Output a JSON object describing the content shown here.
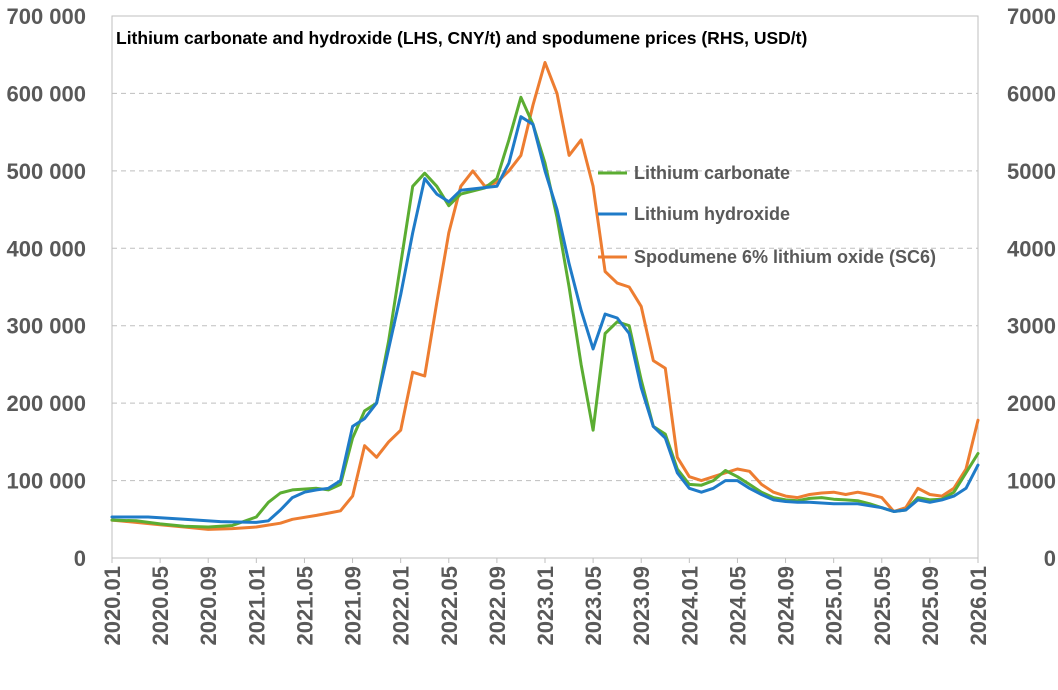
{
  "chart_data": {
    "type": "line",
    "title": "Lithium carbonate and hydroxide (LHS, CNY/t) and spodumene prices (RHS, USD/t)",
    "xlabel": "",
    "ylabel": "",
    "y2label": "",
    "x_ticks": [
      "2020.01",
      "2020.05",
      "2020.09",
      "2021.01",
      "2021.05",
      "2021.09",
      "2022.01",
      "2022.05",
      "2022.09",
      "2023.01",
      "2023.05",
      "2023.09",
      "2024.01",
      "2024.05",
      "2024.09",
      "2025.01",
      "2025.05",
      "2025.09",
      "2026.01"
    ],
    "y_ticks": [
      "0",
      "100 000",
      "200 000",
      "300 000",
      "400 000",
      "500 000",
      "600 000",
      "700 000"
    ],
    "y2_ticks": [
      "0",
      "1000",
      "2000",
      "3000",
      "4000",
      "5000",
      "6000",
      "7000"
    ],
    "ylim": [
      0,
      700000
    ],
    "y2lim": [
      0,
      7000
    ],
    "grid": true,
    "legend_position": "center-right",
    "series": [
      {
        "name": "Lithium carbonate",
        "axis": "left",
        "color": "#5BAD32",
        "points": [
          [
            "2020.01",
            49000
          ],
          [
            "2020.03",
            48000
          ],
          [
            "2020.05",
            44000
          ],
          [
            "2020.07",
            41000
          ],
          [
            "2020.09",
            40000
          ],
          [
            "2020.11",
            42000
          ],
          [
            "2021.01",
            53000
          ],
          [
            "2021.02",
            72000
          ],
          [
            "2021.03",
            84000
          ],
          [
            "2021.04",
            88000
          ],
          [
            "2021.06",
            90000
          ],
          [
            "2021.07",
            88000
          ],
          [
            "2021.08",
            95000
          ],
          [
            "2021.09",
            155000
          ],
          [
            "2021.10",
            190000
          ],
          [
            "2021.11",
            200000
          ],
          [
            "2021.12",
            280000
          ],
          [
            "2022.01",
            380000
          ],
          [
            "2022.02",
            480000
          ],
          [
            "2022.03",
            497000
          ],
          [
            "2022.04",
            480000
          ],
          [
            "2022.05",
            455000
          ],
          [
            "2022.06",
            470000
          ],
          [
            "2022.08",
            478000
          ],
          [
            "2022.09",
            490000
          ],
          [
            "2022.10",
            540000
          ],
          [
            "2022.11",
            595000
          ],
          [
            "2022.12",
            560000
          ],
          [
            "2023.01",
            510000
          ],
          [
            "2023.02",
            440000
          ],
          [
            "2023.03",
            350000
          ],
          [
            "2023.04",
            250000
          ],
          [
            "2023.05",
            165000
          ],
          [
            "2023.06",
            290000
          ],
          [
            "2023.07",
            305000
          ],
          [
            "2023.08",
            300000
          ],
          [
            "2023.09",
            230000
          ],
          [
            "2023.10",
            170000
          ],
          [
            "2023.11",
            160000
          ],
          [
            "2023.12",
            115000
          ],
          [
            "2024.01",
            95000
          ],
          [
            "2024.02",
            94000
          ],
          [
            "2024.03",
            100000
          ],
          [
            "2024.04",
            113000
          ],
          [
            "2024.05",
            105000
          ],
          [
            "2024.06",
            95000
          ],
          [
            "2024.07",
            85000
          ],
          [
            "2024.08",
            78000
          ],
          [
            "2024.09",
            75000
          ],
          [
            "2024.10",
            74000
          ],
          [
            "2024.11",
            77000
          ],
          [
            "2024.12",
            78000
          ],
          [
            "2025.01",
            76000
          ],
          [
            "2025.02",
            75000
          ],
          [
            "2025.03",
            74000
          ],
          [
            "2025.04",
            70000
          ],
          [
            "2025.05",
            65000
          ],
          [
            "2025.06",
            60000
          ],
          [
            "2025.07",
            62000
          ],
          [
            "2025.08",
            78000
          ],
          [
            "2025.09",
            75000
          ],
          [
            "2025.10",
            76000
          ],
          [
            "2025.11",
            85000
          ],
          [
            "2025.12",
            110000
          ],
          [
            "2026.01",
            135000
          ]
        ]
      },
      {
        "name": "Lithium hydroxide",
        "axis": "left",
        "color": "#1F7BC8",
        "points": [
          [
            "2020.01",
            53000
          ],
          [
            "2020.04",
            53000
          ],
          [
            "2020.07",
            50000
          ],
          [
            "2020.10",
            47000
          ],
          [
            "2021.01",
            46000
          ],
          [
            "2021.02",
            48000
          ],
          [
            "2021.03",
            62000
          ],
          [
            "2021.04",
            78000
          ],
          [
            "2021.05",
            85000
          ],
          [
            "2021.06",
            88000
          ],
          [
            "2021.07",
            90000
          ],
          [
            "2021.08",
            100000
          ],
          [
            "2021.09",
            170000
          ],
          [
            "2021.10",
            180000
          ],
          [
            "2021.11",
            200000
          ],
          [
            "2021.12",
            270000
          ],
          [
            "2022.01",
            340000
          ],
          [
            "2022.02",
            420000
          ],
          [
            "2022.03",
            490000
          ],
          [
            "2022.04",
            470000
          ],
          [
            "2022.05",
            460000
          ],
          [
            "2022.06",
            475000
          ],
          [
            "2022.09",
            480000
          ],
          [
            "2022.10",
            510000
          ],
          [
            "2022.11",
            570000
          ],
          [
            "2022.12",
            560000
          ],
          [
            "2023.01",
            500000
          ],
          [
            "2023.02",
            450000
          ],
          [
            "2023.03",
            380000
          ],
          [
            "2023.04",
            320000
          ],
          [
            "2023.05",
            270000
          ],
          [
            "2023.06",
            315000
          ],
          [
            "2023.07",
            310000
          ],
          [
            "2023.08",
            290000
          ],
          [
            "2023.09",
            220000
          ],
          [
            "2023.10",
            170000
          ],
          [
            "2023.11",
            155000
          ],
          [
            "2023.12",
            110000
          ],
          [
            "2024.01",
            90000
          ],
          [
            "2024.02",
            85000
          ],
          [
            "2024.03",
            90000
          ],
          [
            "2024.04",
            100000
          ],
          [
            "2024.05",
            100000
          ],
          [
            "2024.06",
            90000
          ],
          [
            "2024.07",
            82000
          ],
          [
            "2024.08",
            75000
          ],
          [
            "2024.09",
            73000
          ],
          [
            "2024.10",
            72000
          ],
          [
            "2024.11",
            72000
          ],
          [
            "2025.01",
            70000
          ],
          [
            "2025.03",
            70000
          ],
          [
            "2025.05",
            65000
          ],
          [
            "2025.06",
            60000
          ],
          [
            "2025.07",
            62000
          ],
          [
            "2025.08",
            75000
          ],
          [
            "2025.09",
            72000
          ],
          [
            "2025.10",
            75000
          ],
          [
            "2025.11",
            80000
          ],
          [
            "2025.12",
            90000
          ],
          [
            "2026.01",
            120000
          ]
        ]
      },
      {
        "name": "Spodumene 6% lithium oxide (SC6)",
        "axis": "right",
        "color": "#ED7D31",
        "points": [
          [
            "2020.01",
            490
          ],
          [
            "2020.03",
            460
          ],
          [
            "2020.05",
            430
          ],
          [
            "2020.07",
            400
          ],
          [
            "2020.09",
            370
          ],
          [
            "2020.11",
            380
          ],
          [
            "2021.01",
            400
          ],
          [
            "2021.03",
            450
          ],
          [
            "2021.04",
            500
          ],
          [
            "2021.06",
            550
          ],
          [
            "2021.07",
            580
          ],
          [
            "2021.08",
            610
          ],
          [
            "2021.09",
            800
          ],
          [
            "2021.10",
            1450
          ],
          [
            "2021.11",
            1300
          ],
          [
            "2021.12",
            1500
          ],
          [
            "2022.01",
            1650
          ],
          [
            "2022.02",
            2400
          ],
          [
            "2022.03",
            2350
          ],
          [
            "2022.04",
            3300
          ],
          [
            "2022.05",
            4200
          ],
          [
            "2022.06",
            4800
          ],
          [
            "2022.07",
            5000
          ],
          [
            "2022.08",
            4800
          ],
          [
            "2022.09",
            4850
          ],
          [
            "2022.10",
            5000
          ],
          [
            "2022.11",
            5200
          ],
          [
            "2022.12",
            5850
          ],
          [
            "2023.01",
            6400
          ],
          [
            "2023.02",
            6000
          ],
          [
            "2023.03",
            5200
          ],
          [
            "2023.04",
            5400
          ],
          [
            "2023.05",
            4800
          ],
          [
            "2023.06",
            3700
          ],
          [
            "2023.07",
            3550
          ],
          [
            "2023.08",
            3500
          ],
          [
            "2023.09",
            3250
          ],
          [
            "2023.10",
            2550
          ],
          [
            "2023.11",
            2450
          ],
          [
            "2023.12",
            1300
          ],
          [
            "2024.01",
            1050
          ],
          [
            "2024.02",
            1000
          ],
          [
            "2024.03",
            1050
          ],
          [
            "2024.04",
            1100
          ],
          [
            "2024.05",
            1150
          ],
          [
            "2024.06",
            1120
          ],
          [
            "2024.07",
            950
          ],
          [
            "2024.08",
            850
          ],
          [
            "2024.09",
            800
          ],
          [
            "2024.10",
            780
          ],
          [
            "2024.11",
            820
          ],
          [
            "2024.12",
            840
          ],
          [
            "2025.01",
            850
          ],
          [
            "2025.02",
            820
          ],
          [
            "2025.03",
            850
          ],
          [
            "2025.04",
            820
          ],
          [
            "2025.05",
            780
          ],
          [
            "2025.06",
            600
          ],
          [
            "2025.07",
            650
          ],
          [
            "2025.08",
            900
          ],
          [
            "2025.09",
            820
          ],
          [
            "2025.10",
            800
          ],
          [
            "2025.11",
            900
          ],
          [
            "2025.12",
            1150
          ],
          [
            "2026.01",
            1780
          ]
        ]
      }
    ]
  }
}
